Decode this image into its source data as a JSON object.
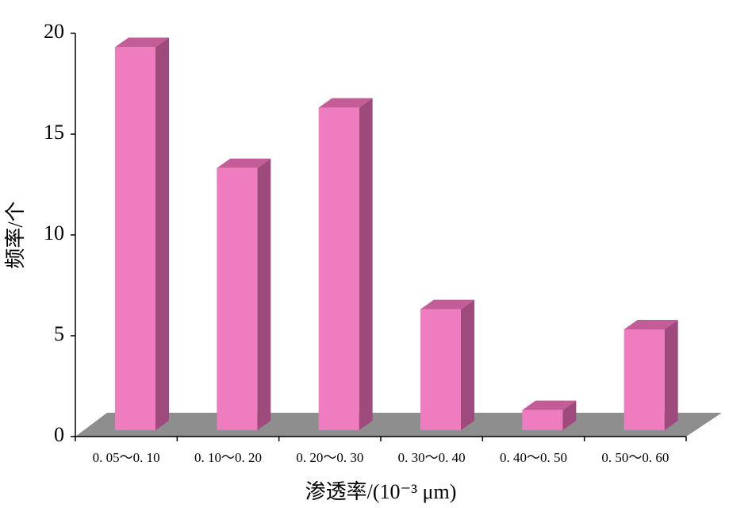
{
  "chart_data": {
    "type": "bar3d",
    "x_label": "渗透率/(10⁻³ μm)",
    "y_label": "频率/个",
    "categories": [
      "0. 05～0. 10",
      "0. 10～0. 20",
      "0. 20～0. 30",
      "0. 30～0. 40",
      "0. 40～0. 50",
      "0. 50～0. 60"
    ],
    "values": [
      19,
      13,
      16,
      6,
      1,
      5
    ],
    "color": "#f07cc0",
    "ylim": [
      0,
      20
    ],
    "yticks": [
      0,
      5,
      10,
      15,
      20
    ]
  }
}
